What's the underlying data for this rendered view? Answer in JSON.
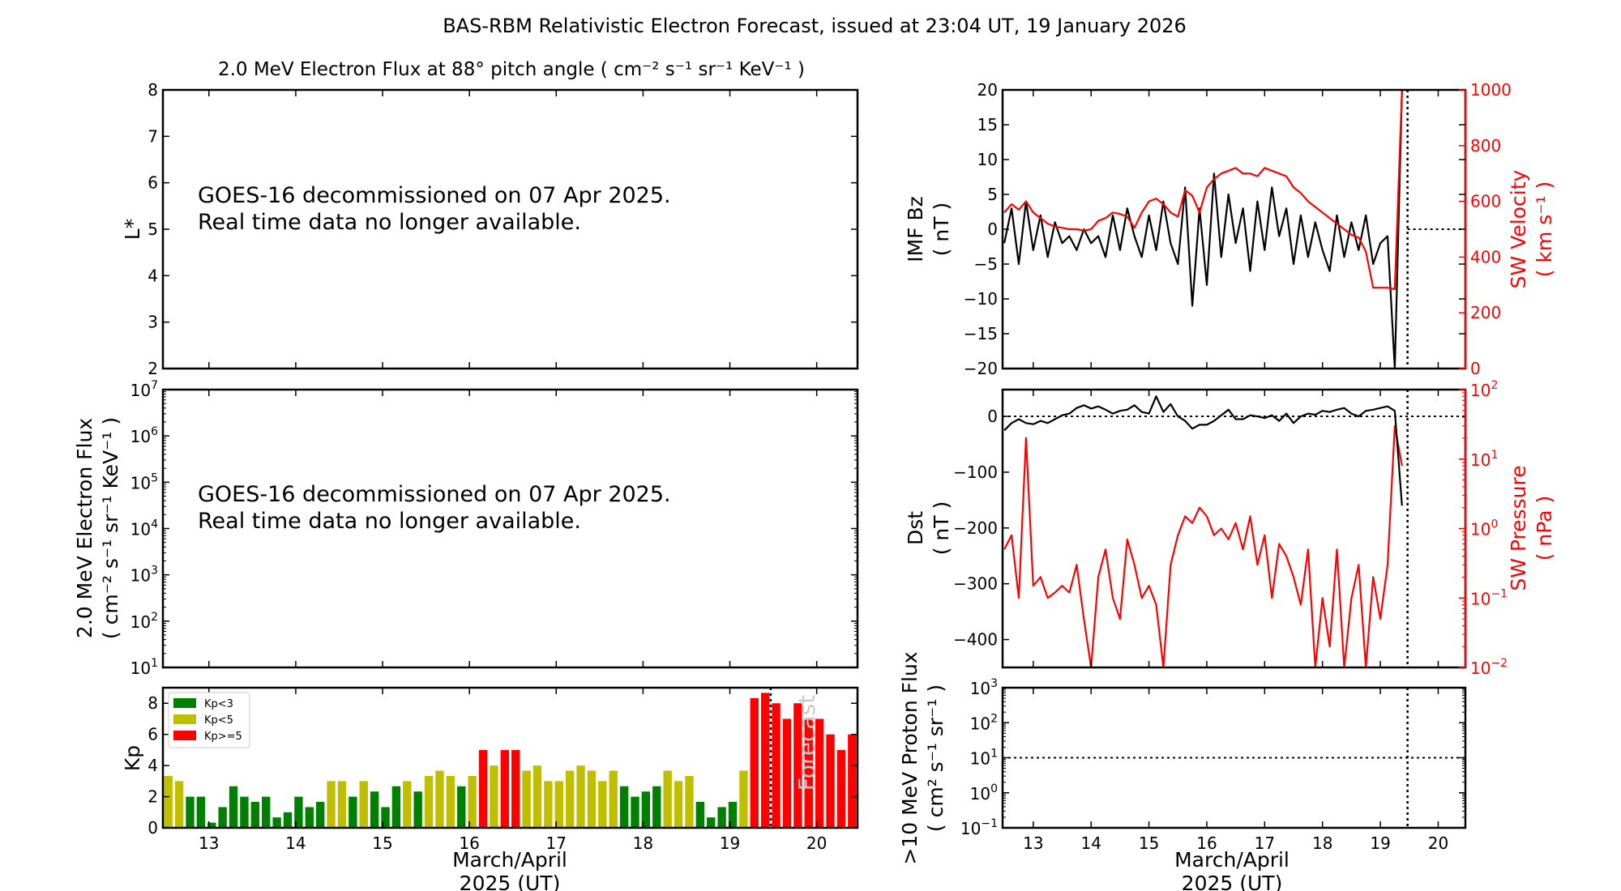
{
  "title": "BAS-RBM Relativistic Electron Forecast, issued at 23:04 UT, 19 January 2026",
  "left_subtitle": "2.0 MeV Electron Flux at 88° pitch angle ( cm⁻² s⁻¹ sr⁻¹ KeV⁻¹ )",
  "notice": {
    "line1": "GOES-16 decommissioned on 07 Apr 2025.",
    "line2": "Real time data no longer available."
  },
  "xlabel": {
    "line1": "March/April",
    "line2": "2025 (UT)"
  },
  "colors": {
    "kp_low": "#008000",
    "kp_mid": "#bfbf00",
    "kp_high": "#ff0000",
    "sw": "#ff0000",
    "line": "#000000",
    "forecast": "#c8c8c8"
  },
  "chart_data": [
    {
      "id": "lstar",
      "type": "line",
      "ylabel": "L*",
      "xlim": [
        12.47,
        20.47
      ],
      "ylim": [
        2,
        8
      ],
      "yticks": [
        2,
        3,
        4,
        5,
        6,
        7,
        8
      ],
      "xticks": [
        13,
        14,
        15,
        16,
        17,
        18,
        19,
        20
      ]
    },
    {
      "id": "eflux",
      "type": "line",
      "ylabel": [
        "2.0 MeV Electron Flux",
        "( cm⁻² s⁻¹ sr⁻¹ KeV⁻¹ )"
      ],
      "yscale": "log",
      "ylim": [
        10.0,
        10000000.0
      ],
      "yticks_exp": [
        1,
        2,
        3,
        4,
        5,
        6,
        7
      ]
    },
    {
      "id": "kp",
      "type": "bar",
      "ylabel": "Kp",
      "ylim": [
        0,
        9
      ],
      "yticks": [
        0,
        2,
        4,
        6,
        8
      ],
      "xticks": [
        13,
        14,
        15,
        16,
        17,
        18,
        19,
        20
      ],
      "start": 12.47,
      "step": 0.125,
      "values": [
        3.33,
        3,
        2,
        2,
        0.33,
        1.33,
        2.67,
        2,
        1.67,
        2,
        0.67,
        1,
        2,
        1.33,
        1.67,
        3,
        3,
        2,
        3,
        2.33,
        1.33,
        2.67,
        3,
        2.33,
        3.33,
        3.67,
        3.33,
        2.67,
        3.33,
        5,
        4,
        5,
        5,
        3.67,
        4,
        3,
        3,
        3.67,
        4,
        3.67,
        3,
        3.67,
        2.67,
        2,
        2.33,
        2.67,
        3.67,
        3,
        3.33,
        1.67,
        0.67,
        1.33,
        1.67,
        3.67,
        8.33,
        8.67,
        8,
        7,
        8,
        7,
        7,
        6,
        5,
        6
      ],
      "legend": [
        "Kp<3",
        "Kp<5",
        "Kp>=5"
      ],
      "legend_position": "upper-left",
      "forecast_label": "Forecast",
      "now": 19.47
    },
    {
      "id": "bz",
      "type": "line",
      "ylabel": [
        "IMF Bz",
        "( nT )"
      ],
      "ylim": [
        -20,
        20
      ],
      "yticks": [
        -20,
        -15,
        -10,
        -5,
        0,
        5,
        10,
        15,
        20
      ],
      "y2label": [
        "SW Velocity",
        "( km s⁻¹ )"
      ],
      "y2lim": [
        0,
        1000
      ],
      "y2ticks": [
        0,
        200,
        400,
        600,
        800,
        1000
      ],
      "start": 12.5,
      "step": 0.125,
      "bz": [
        -2,
        3,
        -5,
        4,
        -3,
        2,
        -4,
        1,
        -2,
        -1,
        -3,
        0,
        -2,
        -1,
        -4,
        2,
        -3,
        3,
        -1,
        -4,
        2,
        -3,
        4,
        -2,
        -5,
        6,
        -11,
        3,
        -8,
        8,
        -4,
        5,
        -2,
        3,
        -6,
        4,
        -3,
        6,
        -1,
        3,
        -5,
        2,
        -4,
        1,
        -3,
        -6,
        2,
        -4,
        1,
        -3,
        2,
        -5,
        -2,
        -1,
        -20,
        20
      ],
      "velocity": [
        560,
        590,
        570,
        600,
        560,
        540,
        520,
        510,
        505,
        500,
        500,
        495,
        500,
        530,
        540,
        560,
        555,
        545,
        505,
        560,
        600,
        610,
        590,
        560,
        545,
        640,
        620,
        560,
        650,
        680,
        700,
        710,
        720,
        700,
        700,
        690,
        720,
        710,
        700,
        690,
        650,
        630,
        600,
        580,
        560,
        540,
        520,
        500,
        480,
        470,
        420,
        290,
        290,
        290,
        285,
        1000
      ],
      "now": 19.47
    },
    {
      "id": "dst",
      "type": "line",
      "ylabel": [
        "Dst",
        "( nT )"
      ],
      "ylim": [
        -450,
        48
      ],
      "yticks": [
        -400,
        -300,
        -200,
        -100,
        0
      ],
      "y2label": [
        "SW Pressure",
        "( nPa )"
      ],
      "y2scale": "log",
      "y2lim": [
        0.01,
        100.0
      ],
      "y2ticks_exp": [
        -2,
        -1,
        0,
        1,
        2
      ],
      "start": 12.5,
      "step": 0.125,
      "dst": [
        -25,
        -12,
        -5,
        -12,
        -14,
        -8,
        -12,
        -5,
        2,
        5,
        15,
        20,
        14,
        18,
        12,
        5,
        10,
        12,
        20,
        8,
        5,
        36,
        8,
        22,
        0,
        -8,
        -22,
        -15,
        -15,
        -8,
        2,
        12,
        -5,
        -5,
        2,
        0,
        -3,
        2,
        -8,
        5,
        -12,
        0,
        5,
        3,
        10,
        8,
        12,
        15,
        5,
        0,
        10,
        12,
        15,
        18,
        10,
        -160
      ],
      "pressure": [
        0.5,
        0.8,
        0.1,
        20,
        0.15,
        0.2,
        0.1,
        0.12,
        0.15,
        0.12,
        0.3,
        0.05,
        0.008,
        0.2,
        0.5,
        0.1,
        0.05,
        0.7,
        0.3,
        0.1,
        0.15,
        0.08,
        0.005,
        0.3,
        0.8,
        1.5,
        1.2,
        2,
        1.5,
        0.8,
        1,
        0.7,
        1.2,
        0.5,
        1.5,
        0.3,
        0.8,
        0.1,
        0.6,
        0.4,
        0.2,
        0.08,
        0.5,
        0.005,
        0.1,
        0.02,
        0.5,
        0.008,
        0.1,
        0.3,
        0.008,
        0.2,
        0.05,
        0.3,
        30,
        8
      ],
      "now": 19.47
    },
    {
      "id": "proton",
      "type": "line",
      "ylabel": [
        ">10 MeV Proton Flux",
        "( cm² s⁻¹ sr⁻¹ )"
      ],
      "yscale": "log",
      "ylim": [
        0.1,
        1000.0
      ],
      "yticks_exp": [
        -1,
        0,
        1,
        2,
        3
      ],
      "threshold": 10,
      "xticks": [
        13,
        14,
        15,
        16,
        17,
        18,
        19,
        20
      ],
      "now": 19.47
    }
  ]
}
